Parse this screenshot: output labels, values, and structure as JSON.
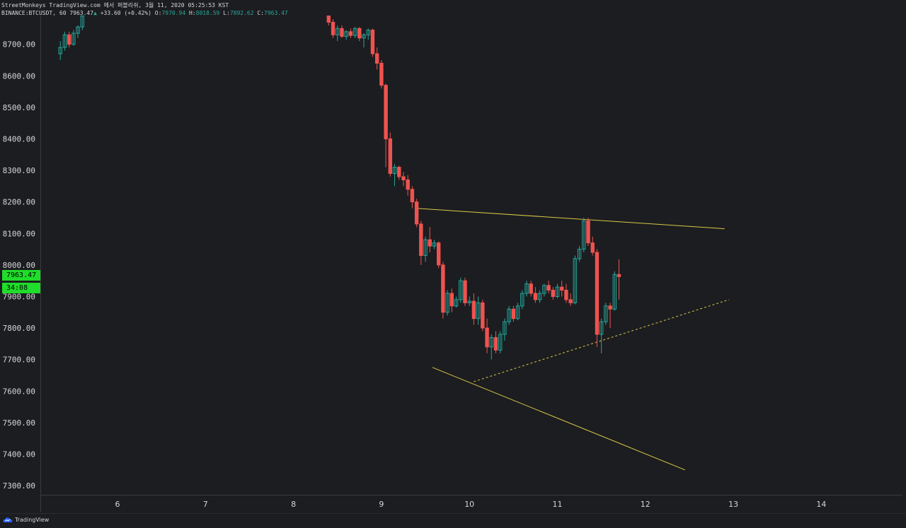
{
  "header": {
    "line1": "StreetMonkeys TradingView.com 에서 퍼블리쉬, 3월 11, 2020 05:25:53 KST",
    "symbol": "BINANCE:BTCUSDT, 60",
    "last": "7963.47",
    "change": "+33.60 (+0.42%)",
    "o_label": "O:",
    "o_value": "7970.94",
    "h_label": "H:",
    "h_value": "8018.59",
    "l_label": "L:",
    "l_value": "7892.62",
    "c_label": "C:",
    "c_value": "7963.47"
  },
  "price_tag": {
    "price": "7963.47",
    "countdown": "34:08"
  },
  "footer": {
    "brand": "TradingView"
  },
  "colors": {
    "background": "#1c1d20",
    "up": "#26a69a",
    "down": "#ef5350",
    "trendline": "#d8c84a",
    "price_tag": "#1fdd2a"
  },
  "chart_data": {
    "type": "candlestick",
    "y_tick_labels": [
      "8700.00",
      "8600.00",
      "8500.00",
      "8400.00",
      "8300.00",
      "8200.00",
      "8100.00",
      "8000.00",
      "7900.00",
      "7800.00",
      "7700.00",
      "7600.00",
      "7500.00",
      "7400.00",
      "7300.00"
    ],
    "y_ticks": [
      8700,
      8600,
      8500,
      8400,
      8300,
      8200,
      8100,
      8000,
      7900,
      7800,
      7700,
      7600,
      7500,
      7400,
      7300
    ],
    "ylim": [
      7270,
      8790
    ],
    "x_tick_labels": [
      "6",
      "7",
      "8",
      "9",
      "10",
      "11",
      "12",
      "13",
      "14"
    ],
    "x_ticks": [
      6,
      7,
      8,
      9,
      10,
      11,
      12,
      13,
      14
    ],
    "xlim": [
      5.35,
      14.95
    ],
    "candles": [
      [
        5.35,
        8670,
        8710,
        8650,
        8690
      ],
      [
        5.4,
        8690,
        8740,
        8680,
        8730
      ],
      [
        5.45,
        8730,
        8740,
        8690,
        8700
      ],
      [
        5.5,
        8700,
        8745,
        8695,
        8735
      ],
      [
        5.55,
        8735,
        8760,
        8720,
        8755
      ],
      [
        5.6,
        8755,
        8800,
        8745,
        8790
      ],
      [
        8.4,
        8790,
        8800,
        8760,
        8770
      ],
      [
        8.45,
        8770,
        8780,
        8720,
        8730
      ],
      [
        8.5,
        8730,
        8760,
        8710,
        8750
      ],
      [
        8.55,
        8750,
        8760,
        8720,
        8725
      ],
      [
        8.6,
        8725,
        8745,
        8715,
        8740
      ],
      [
        8.65,
        8740,
        8750,
        8720,
        8728
      ],
      [
        8.7,
        8728,
        8755,
        8720,
        8750
      ],
      [
        8.75,
        8750,
        8755,
        8710,
        8720
      ],
      [
        8.8,
        8720,
        8735,
        8690,
        8730
      ],
      [
        8.85,
        8730,
        8750,
        8715,
        8745
      ],
      [
        8.9,
        8745,
        8750,
        8660,
        8670
      ],
      [
        8.95,
        8670,
        8690,
        8620,
        8640
      ],
      [
        9.0,
        8640,
        8650,
        8560,
        8570
      ],
      [
        9.05,
        8570,
        8575,
        8310,
        8400
      ],
      [
        9.1,
        8400,
        8420,
        8280,
        8290
      ],
      [
        9.15,
        8290,
        8320,
        8250,
        8310
      ],
      [
        9.2,
        8310,
        8315,
        8270,
        8280
      ],
      [
        9.25,
        8280,
        8295,
        8250,
        8270
      ],
      [
        9.3,
        8270,
        8285,
        8220,
        8240
      ],
      [
        9.35,
        8240,
        8250,
        8180,
        8200
      ],
      [
        9.4,
        8200,
        8210,
        8120,
        8130
      ],
      [
        9.45,
        8130,
        8140,
        8000,
        8030
      ],
      [
        9.5,
        8030,
        8090,
        8010,
        8080
      ],
      [
        9.55,
        8080,
        8120,
        8040,
        8060
      ],
      [
        9.6,
        8060,
        8080,
        8050,
        8070
      ],
      [
        9.65,
        8070,
        8075,
        7990,
        8000
      ],
      [
        9.7,
        8000,
        8010,
        7830,
        7850
      ],
      [
        9.75,
        7850,
        7920,
        7840,
        7910
      ],
      [
        9.8,
        7910,
        7925,
        7850,
        7870
      ],
      [
        9.85,
        7870,
        7900,
        7865,
        7890
      ],
      [
        9.9,
        7890,
        7960,
        7880,
        7950
      ],
      [
        9.95,
        7950,
        7960,
        7870,
        7880
      ],
      [
        10.0,
        7880,
        7900,
        7870,
        7885
      ],
      [
        10.05,
        7885,
        7910,
        7810,
        7830
      ],
      [
        10.1,
        7830,
        7900,
        7810,
        7880
      ],
      [
        10.15,
        7880,
        7890,
        7790,
        7800
      ],
      [
        10.2,
        7800,
        7830,
        7720,
        7740
      ],
      [
        10.25,
        7740,
        7780,
        7700,
        7770
      ],
      [
        10.3,
        7770,
        7790,
        7720,
        7730
      ],
      [
        10.35,
        7730,
        7790,
        7720,
        7780
      ],
      [
        10.4,
        7780,
        7830,
        7760,
        7820
      ],
      [
        10.45,
        7820,
        7870,
        7810,
        7860
      ],
      [
        10.5,
        7860,
        7870,
        7820,
        7830
      ],
      [
        10.55,
        7830,
        7880,
        7825,
        7870
      ],
      [
        10.6,
        7870,
        7920,
        7860,
        7910
      ],
      [
        10.65,
        7910,
        7950,
        7900,
        7940
      ],
      [
        10.7,
        7940,
        7950,
        7900,
        7910
      ],
      [
        10.75,
        7910,
        7930,
        7880,
        7890
      ],
      [
        10.8,
        7890,
        7920,
        7880,
        7910
      ],
      [
        10.85,
        7910,
        7940,
        7900,
        7935
      ],
      [
        10.9,
        7935,
        7950,
        7910,
        7920
      ],
      [
        10.95,
        7920,
        7930,
        7890,
        7900
      ],
      [
        11.0,
        7900,
        7940,
        7895,
        7930
      ],
      [
        11.05,
        7930,
        7950,
        7900,
        7920
      ],
      [
        11.1,
        7920,
        7940,
        7880,
        7890
      ],
      [
        11.15,
        7890,
        7910,
        7870,
        7880
      ],
      [
        11.2,
        7880,
        8030,
        7875,
        8020
      ],
      [
        11.25,
        8020,
        8060,
        8010,
        8050
      ],
      [
        11.3,
        8050,
        8150,
        8040,
        8140
      ],
      [
        11.35,
        8140,
        8150,
        8060,
        8070
      ],
      [
        11.4,
        8070,
        8090,
        8030,
        8040
      ],
      [
        11.45,
        8040,
        8050,
        7740,
        7780
      ],
      [
        11.5,
        7780,
        7830,
        7720,
        7820
      ],
      [
        11.55,
        7820,
        7880,
        7810,
        7870
      ],
      [
        11.6,
        7870,
        7880,
        7800,
        7860
      ],
      [
        11.65,
        7860,
        7980,
        7855,
        7970
      ],
      [
        11.7,
        7970,
        8018,
        7890,
        7963
      ]
    ],
    "trendlines": [
      {
        "x1": 9.38,
        "y1": 8180,
        "x2": 12.9,
        "y2": 8115,
        "style": "solid"
      },
      {
        "x1": 9.58,
        "y1": 7675,
        "x2": 12.45,
        "y2": 7350,
        "style": "solid"
      },
      {
        "x1": 10.05,
        "y1": 7630,
        "x2": 12.95,
        "y2": 7890,
        "style": "dashed"
      }
    ]
  }
}
